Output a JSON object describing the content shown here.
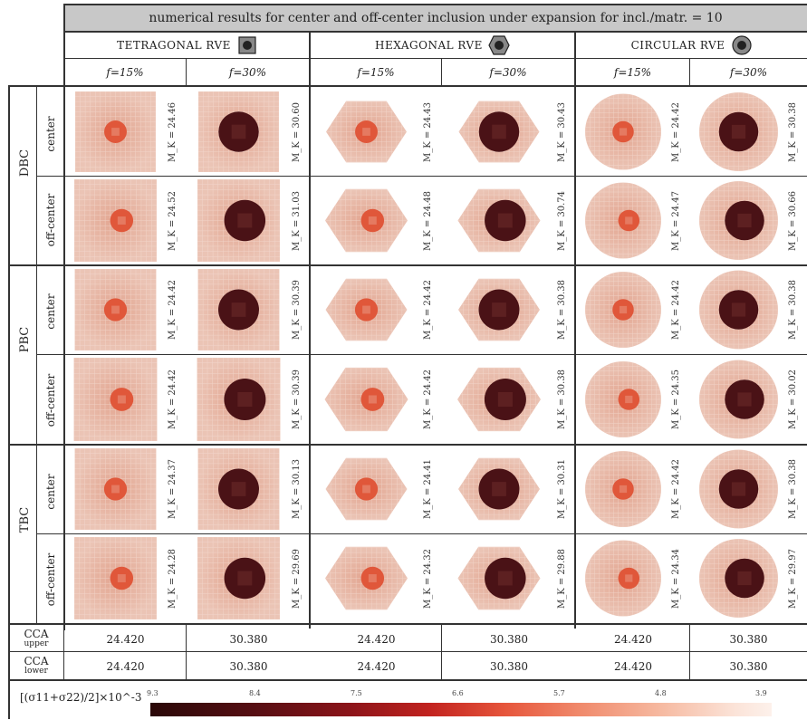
{
  "title": "numerical results for center and off-center inclusion under expansion for incl./matr. = 10",
  "rve_headers": [
    "TETRAGONAL RVE",
    "HEXAGONAL RVE",
    "CIRCULAR RVE"
  ],
  "volume_fractions": [
    "f=15%",
    "f=30%",
    "f=15%",
    "f=30%",
    "f=15%",
    "f=30%"
  ],
  "boundary_conditions": [
    "DBC",
    "PBC",
    "TBC"
  ],
  "positions": [
    "center",
    "off-center"
  ],
  "mk_label_prefix": "M_K =",
  "mk_values": {
    "DBC": {
      "center": [
        "24.46",
        "30.60",
        "24.43",
        "30.43",
        "24.42",
        "30.38"
      ],
      "off-center": [
        "24.52",
        "31.03",
        "24.48",
        "30.74",
        "24.47",
        "30.66"
      ]
    },
    "PBC": {
      "center": [
        "24.42",
        "30.39",
        "24.42",
        "30.38",
        "24.42",
        "30.38"
      ],
      "off-center": [
        "24.42",
        "30.39",
        "24.42",
        "30.38",
        "24.35",
        "30.02"
      ]
    },
    "TBC": {
      "center": [
        "24.37",
        "30.13",
        "24.41",
        "30.31",
        "24.42",
        "30.38"
      ],
      "off-center": [
        "24.28",
        "29.69",
        "24.32",
        "29.88",
        "24.34",
        "29.97"
      ]
    }
  },
  "cca": {
    "upper_label": "CCA",
    "upper_sub": "upper",
    "lower_label": "CCA",
    "lower_sub": "lower",
    "upper": [
      "24.420",
      "30.380",
      "24.420",
      "30.380",
      "24.420",
      "30.380"
    ],
    "lower": [
      "24.420",
      "30.380",
      "24.420",
      "30.380",
      "24.420",
      "30.380"
    ]
  },
  "colorbar": {
    "label": "[(σ11+σ22)/2]×10^-3",
    "ticks": [
      "9.3",
      "8.4",
      "7.5",
      "6.6",
      "5.7",
      "4.8",
      "3.9"
    ],
    "colors": {
      "matrix": "#e2a48f",
      "matrix_light": "#ebc4b5",
      "inclusion_small": "#e0573a",
      "inclusion_large": "#4a1216",
      "mesh_line": "#f5ddd3"
    }
  }
}
